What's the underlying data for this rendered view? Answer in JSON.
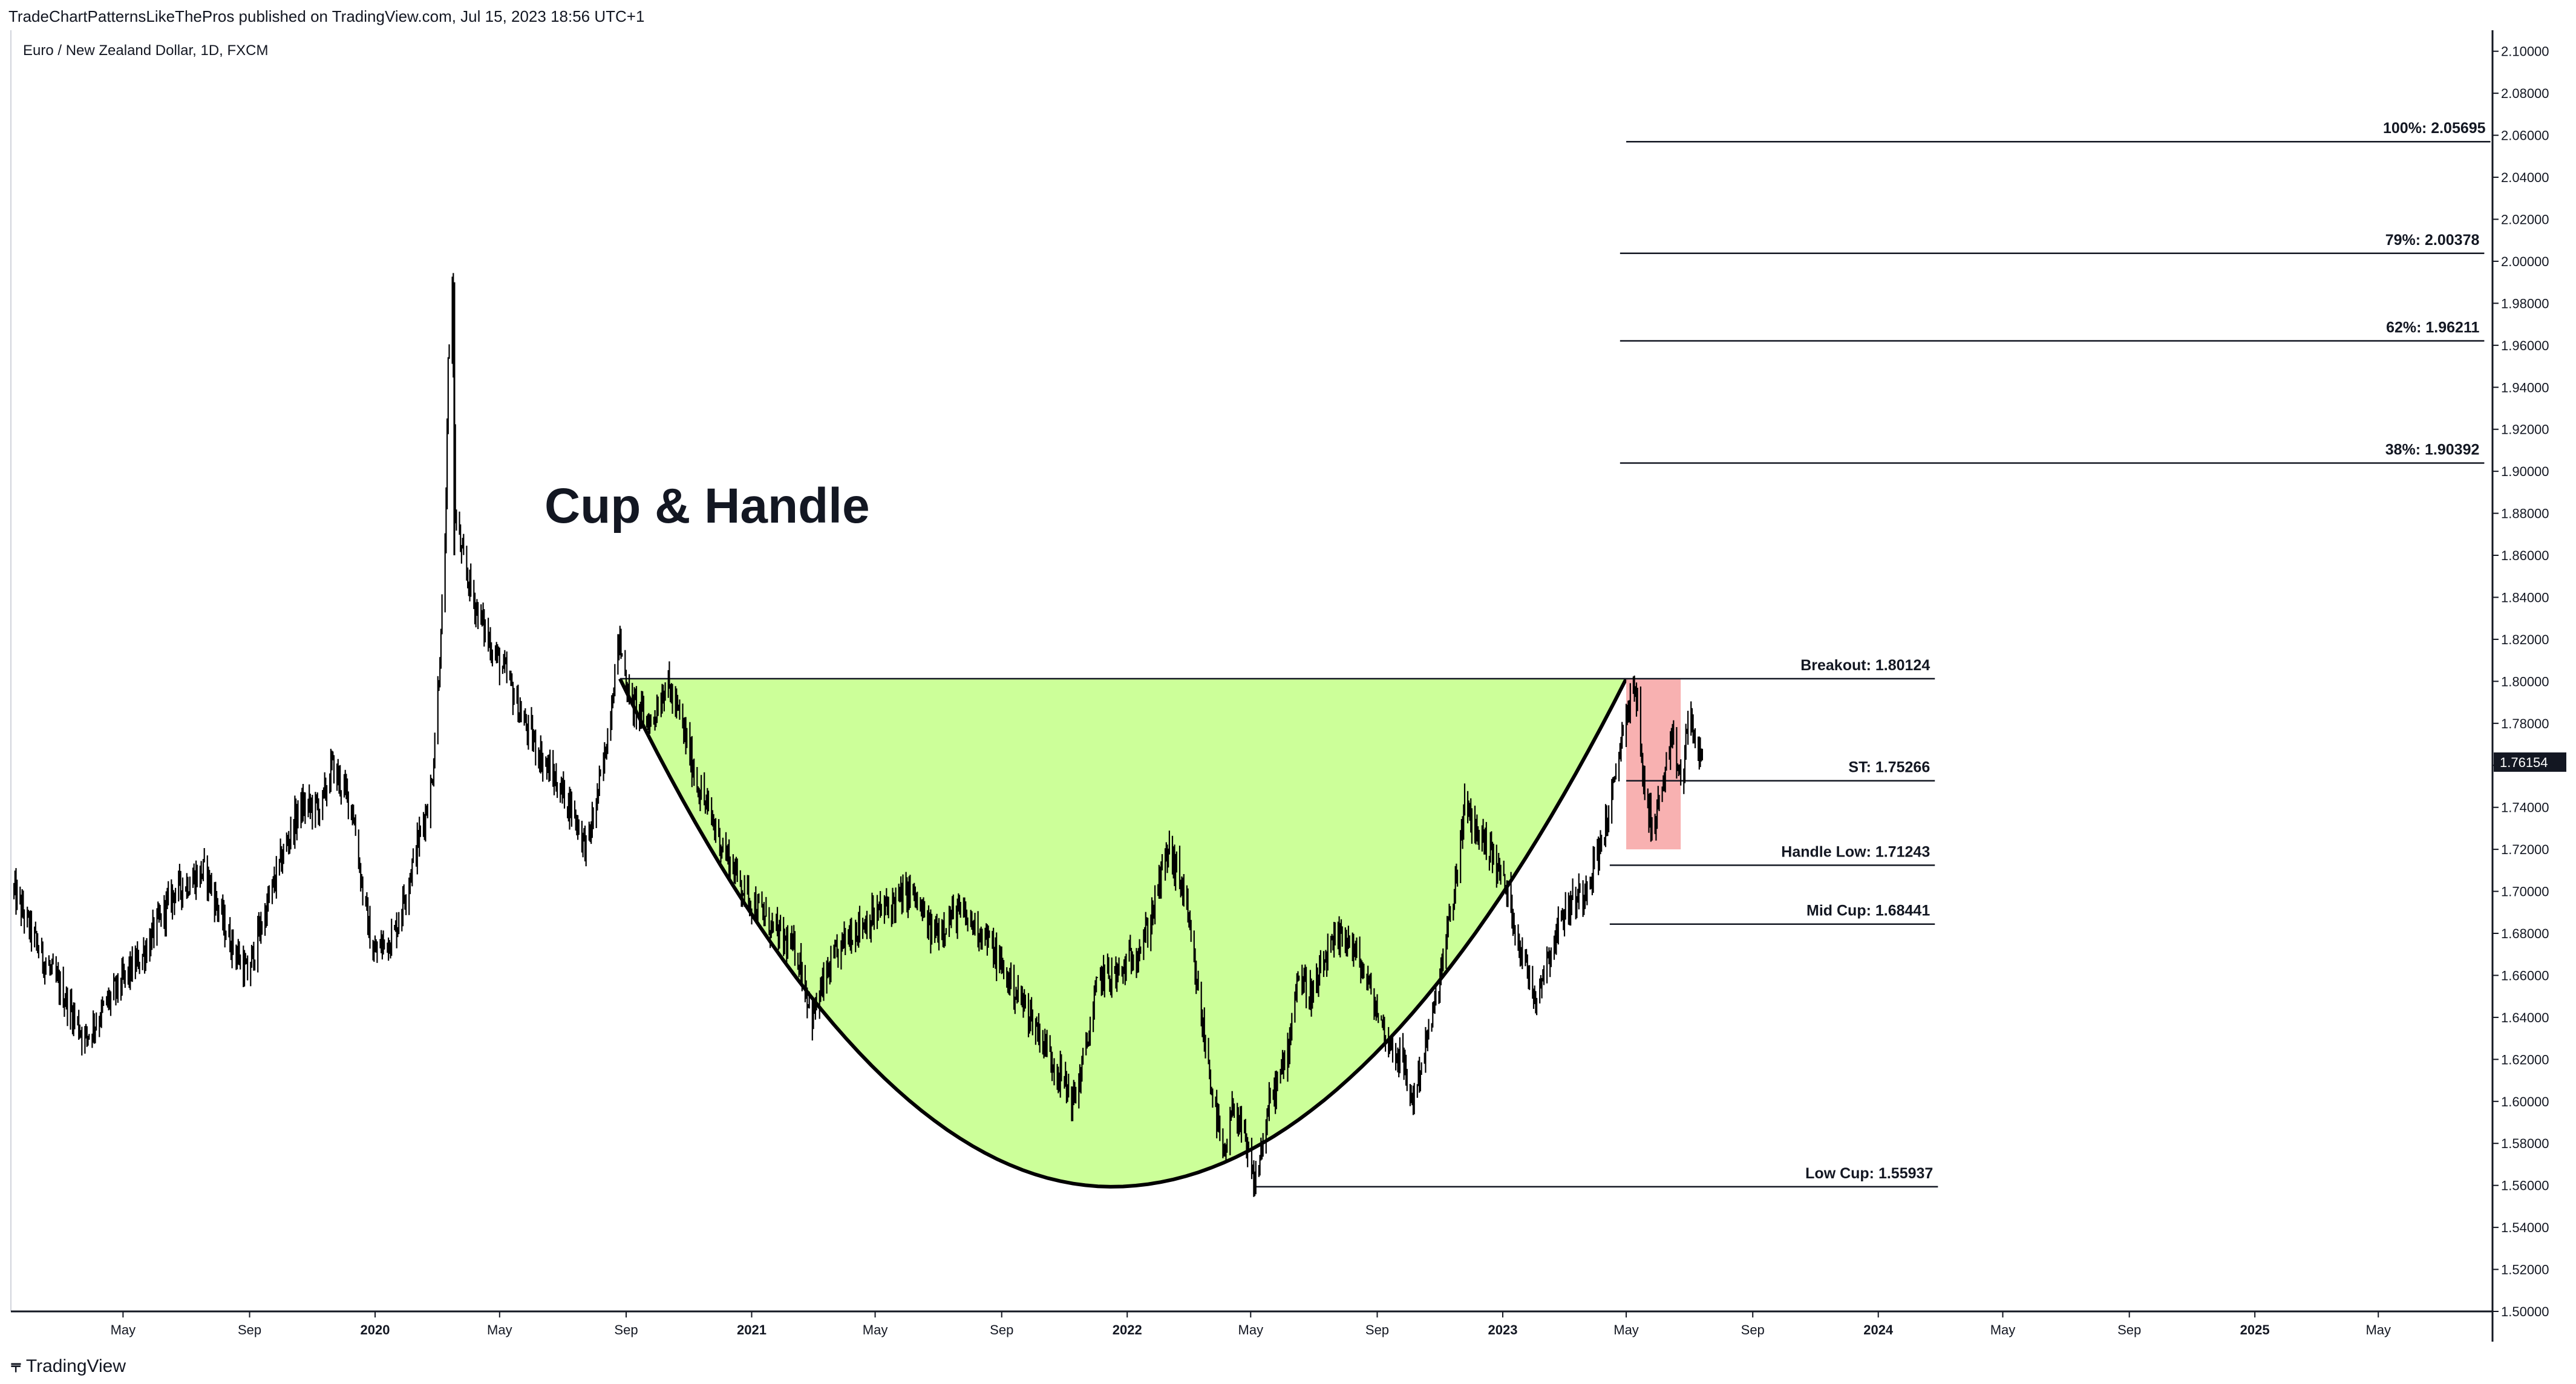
{
  "header": {
    "published_by": "TradeChartPatternsLikeThePros published on TradingView.com, Jul 15, 2023 18:56 UTC+1",
    "symbol": "Euro / New Zealand Dollar, 1D, FXCM"
  },
  "branding": {
    "logo_icon": "tradingview-logo-icon",
    "label": "TradingView"
  },
  "annotation_title": "Cup & Handle",
  "colors": {
    "cup_fill": "#ccff99",
    "handle_fill": "#f7a8a8",
    "candles": "#000000",
    "price_tag_bg": "#131722"
  },
  "chart_data": {
    "type": "candlestick",
    "instrument": "Euro / New Zealand Dollar",
    "timeframe": "1D",
    "y_axis": {
      "side": "right",
      "range": [
        1.5,
        2.11
      ],
      "ticks": [
        "1.50000",
        "1.52000",
        "1.54000",
        "1.56000",
        "1.58000",
        "1.60000",
        "1.62000",
        "1.64000",
        "1.66000",
        "1.68000",
        "1.70000",
        "1.72000",
        "1.74000",
        "1.76000",
        "1.78000",
        "1.80000",
        "1.82000",
        "1.84000",
        "1.86000",
        "1.88000",
        "1.90000",
        "1.92000",
        "1.94000",
        "1.96000",
        "1.98000",
        "2.00000",
        "2.02000",
        "2.04000",
        "2.06000",
        "2.08000",
        "2.10000"
      ]
    },
    "current_price": "1.76154",
    "x_axis": {
      "range": [
        "2019-01-12",
        "2025-08-20"
      ],
      "ticks": [
        {
          "date": "2019-05-01",
          "label": "May",
          "year": false
        },
        {
          "date": "2019-09-01",
          "label": "Sep",
          "year": false
        },
        {
          "date": "2020-01-01",
          "label": "2020",
          "year": true
        },
        {
          "date": "2020-05-01",
          "label": "May",
          "year": false
        },
        {
          "date": "2020-09-01",
          "label": "Sep",
          "year": false
        },
        {
          "date": "2021-01-01",
          "label": "2021",
          "year": true
        },
        {
          "date": "2021-05-01",
          "label": "May",
          "year": false
        },
        {
          "date": "2021-09-01",
          "label": "Sep",
          "year": false
        },
        {
          "date": "2022-01-01",
          "label": "2022",
          "year": true
        },
        {
          "date": "2022-05-01",
          "label": "May",
          "year": false
        },
        {
          "date": "2022-09-01",
          "label": "Sep",
          "year": false
        },
        {
          "date": "2023-01-01",
          "label": "2023",
          "year": true
        },
        {
          "date": "2023-05-01",
          "label": "May",
          "year": false
        },
        {
          "date": "2023-09-01",
          "label": "Sep",
          "year": false
        },
        {
          "date": "2024-01-01",
          "label": "2024",
          "year": true
        },
        {
          "date": "2024-05-01",
          "label": "May",
          "year": false
        },
        {
          "date": "2024-09-01",
          "label": "Sep",
          "year": false
        },
        {
          "date": "2025-01-01",
          "label": "2025",
          "year": true
        },
        {
          "date": "2025-05-01",
          "label": "May",
          "year": false
        }
      ]
    },
    "price_series": {
      "kind": "daily candlesticks (approximate path of closes)",
      "points": [
        [
          "2019-01-15",
          1.7
        ],
        [
          "2019-02-10",
          1.67
        ],
        [
          "2019-03-05",
          1.65
        ],
        [
          "2019-03-25",
          1.63
        ],
        [
          "2019-04-20",
          1.65
        ],
        [
          "2019-05-20",
          1.67
        ],
        [
          "2019-06-20",
          1.7
        ],
        [
          "2019-07-20",
          1.71
        ],
        [
          "2019-08-10",
          1.68
        ],
        [
          "2019-08-30",
          1.66
        ],
        [
          "2019-09-10",
          1.68
        ],
        [
          "2019-10-05",
          1.72
        ],
        [
          "2019-10-20",
          1.74
        ],
        [
          "2019-11-10",
          1.74
        ],
        [
          "2019-11-20",
          1.76
        ],
        [
          "2019-12-10",
          1.74
        ],
        [
          "2019-12-20",
          1.7
        ],
        [
          "2019-12-30",
          1.67
        ],
        [
          "2020-01-20",
          1.68
        ],
        [
          "2020-02-10",
          1.72
        ],
        [
          "2020-02-25",
          1.75
        ],
        [
          "2020-03-05",
          1.82
        ],
        [
          "2020-03-10",
          1.88
        ],
        [
          "2020-03-12",
          1.95
        ],
        [
          "2020-03-16",
          1.99
        ],
        [
          "2020-03-19",
          1.88
        ],
        [
          "2020-03-25",
          1.86
        ],
        [
          "2020-04-05",
          1.84
        ],
        [
          "2020-04-20",
          1.82
        ],
        [
          "2020-05-10",
          1.8
        ],
        [
          "2020-05-25",
          1.78
        ],
        [
          "2020-06-15",
          1.76
        ],
        [
          "2020-07-10",
          1.74
        ],
        [
          "2020-07-25",
          1.72
        ],
        [
          "2020-08-10",
          1.76
        ],
        [
          "2020-08-20",
          1.8
        ],
        [
          "2020-08-25",
          1.82
        ],
        [
          "2020-09-05",
          1.79
        ],
        [
          "2020-09-25",
          1.78
        ],
        [
          "2020-10-10",
          1.8
        ],
        [
          "2020-10-25",
          1.78
        ],
        [
          "2020-11-10",
          1.75
        ],
        [
          "2020-12-05",
          1.72
        ],
        [
          "2020-12-25",
          1.7
        ],
        [
          "2021-01-25",
          1.68
        ],
        [
          "2021-02-15",
          1.67
        ],
        [
          "2021-03-01",
          1.64
        ],
        [
          "2021-03-15",
          1.66
        ],
        [
          "2021-04-05",
          1.68
        ],
        [
          "2021-05-05",
          1.69
        ],
        [
          "2021-06-05",
          1.7
        ],
        [
          "2021-06-25",
          1.68
        ],
        [
          "2021-07-20",
          1.69
        ],
        [
          "2021-08-15",
          1.68
        ],
        [
          "2021-09-05",
          1.66
        ],
        [
          "2021-09-30",
          1.64
        ],
        [
          "2021-10-20",
          1.62
        ],
        [
          "2021-11-10",
          1.6
        ],
        [
          "2021-11-20",
          1.62
        ],
        [
          "2021-12-05",
          1.66
        ],
        [
          "2021-12-25",
          1.66
        ],
        [
          "2022-01-20",
          1.68
        ],
        [
          "2022-02-10",
          1.72
        ],
        [
          "2022-02-25",
          1.7
        ],
        [
          "2022-03-08",
          1.66
        ],
        [
          "2022-03-20",
          1.62
        ],
        [
          "2022-04-05",
          1.57
        ],
        [
          "2022-04-15",
          1.6
        ],
        [
          "2022-04-25",
          1.58
        ],
        [
          "2022-05-05",
          1.56
        ],
        [
          "2022-05-20",
          1.6
        ],
        [
          "2022-06-05",
          1.62
        ],
        [
          "2022-06-15",
          1.66
        ],
        [
          "2022-07-01",
          1.65
        ],
        [
          "2022-07-15",
          1.67
        ],
        [
          "2022-08-01",
          1.68
        ],
        [
          "2022-08-20",
          1.66
        ],
        [
          "2022-09-10",
          1.63
        ],
        [
          "2022-09-25",
          1.62
        ],
        [
          "2022-10-05",
          1.6
        ],
        [
          "2022-10-15",
          1.62
        ],
        [
          "2022-10-25",
          1.64
        ],
        [
          "2022-11-05",
          1.67
        ],
        [
          "2022-11-15",
          1.7
        ],
        [
          "2022-11-25",
          1.74
        ],
        [
          "2022-12-05",
          1.73
        ],
        [
          "2022-12-20",
          1.72
        ],
        [
          "2023-01-05",
          1.7
        ],
        [
          "2023-01-20",
          1.67
        ],
        [
          "2023-02-01",
          1.65
        ],
        [
          "2023-02-15",
          1.67
        ],
        [
          "2023-03-01",
          1.69
        ],
        [
          "2023-03-20",
          1.7
        ],
        [
          "2023-04-05",
          1.72
        ],
        [
          "2023-04-20",
          1.75
        ],
        [
          "2023-04-28",
          1.78
        ],
        [
          "2023-05-05",
          1.79
        ],
        [
          "2023-05-10",
          1.8
        ],
        [
          "2023-05-16",
          1.76
        ],
        [
          "2023-05-22",
          1.74
        ],
        [
          "2023-05-28",
          1.73
        ],
        [
          "2023-06-05",
          1.75
        ],
        [
          "2023-06-15",
          1.77
        ],
        [
          "2023-06-25",
          1.75
        ],
        [
          "2023-07-01",
          1.79
        ],
        [
          "2023-07-07",
          1.77
        ],
        [
          "2023-07-14",
          1.76
        ]
      ]
    },
    "shapes": [
      {
        "name": "cup",
        "kind": "filled parabola",
        "start": [
          "2020-08-26",
          1.80124
        ],
        "bottom": [
          "2021-12-17",
          1.55937
        ],
        "end": [
          "2023-05-01",
          1.80124
        ],
        "fill": "#ccff99"
      },
      {
        "name": "handle",
        "kind": "rectangle",
        "from": [
          "2023-05-01",
          1.80124
        ],
        "to": [
          "2023-06-23",
          1.72
        ],
        "fill": "#f7a8a8"
      }
    ],
    "levels": [
      {
        "label": "100%: 2.05695",
        "price": 2.05695,
        "from": "2023-05-01",
        "to": "2025-08-18"
      },
      {
        "label": "79%: 2.00378",
        "price": 2.00378,
        "from": "2023-04-25",
        "to": "2025-08-12"
      },
      {
        "label": "62%: 1.96211",
        "price": 1.96211,
        "from": "2023-04-25",
        "to": "2025-08-12"
      },
      {
        "label": "38%: 1.90392",
        "price": 1.90392,
        "from": "2023-04-25",
        "to": "2025-08-12"
      },
      {
        "label": "Breakout: 1.80124",
        "price": 1.80124,
        "from": "2020-08-26",
        "to": "2024-02-25"
      },
      {
        "label": "ST: 1.75266",
        "price": 1.75266,
        "from": "2023-05-01",
        "to": "2024-02-25"
      },
      {
        "label": "Handle Low: 1.71243",
        "price": 1.71243,
        "from": "2023-04-15",
        "to": "2024-02-25"
      },
      {
        "label": "Mid Cup: 1.68441",
        "price": 1.68441,
        "from": "2023-04-15",
        "to": "2024-02-25"
      },
      {
        "label": "Low Cup: 1.55937",
        "price": 1.55937,
        "from": "2022-05-05",
        "to": "2024-02-28"
      }
    ]
  }
}
